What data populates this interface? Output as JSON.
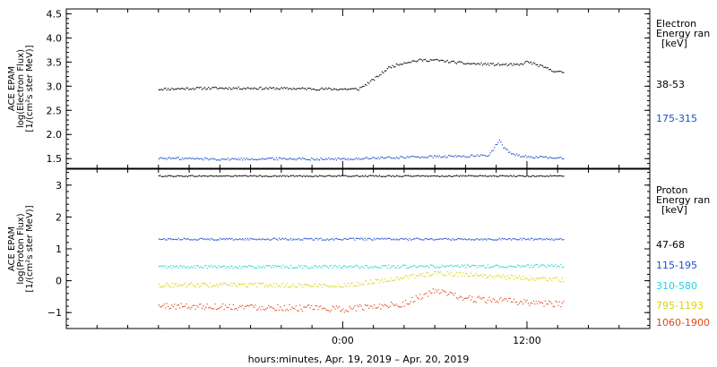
{
  "chart_data": [
    {
      "type": "scatter",
      "ylabel_lines": [
        "ACE EPAM",
        "log(Electron Flux)",
        "[1/(cm²s ster MeV)]"
      ],
      "ylim": [
        1.3,
        4.6
      ],
      "yticks": [
        1.5,
        2.0,
        2.5,
        3.0,
        3.5,
        4.0,
        4.5
      ],
      "ytick_labels": [
        "1.5",
        "2.0",
        "2.5",
        "3.0",
        "3.5",
        "4.0",
        "4.5"
      ],
      "legend_title_lines": [
        "Electron",
        "Energy ran",
        "[keV]"
      ],
      "series": [
        {
          "name": "38-53",
          "color": "#000000",
          "x": [
            -12,
            -9,
            -6,
            -3,
            -0.5,
            1,
            2,
            3,
            4,
            5,
            6,
            8,
            10,
            11.5,
            12,
            14
          ],
          "values": [
            2.95,
            2.97,
            2.97,
            2.96,
            2.95,
            2.95,
            3.15,
            3.4,
            3.5,
            3.55,
            3.55,
            3.48,
            3.46,
            3.45,
            3.52,
            3.3
          ]
        },
        {
          "name": "175-315",
          "color": "#1a4fd0",
          "x": [
            -12,
            -8,
            -4,
            0,
            4,
            8,
            9.5,
            10.2,
            10.4,
            11,
            12,
            14
          ],
          "values": [
            1.52,
            1.5,
            1.51,
            1.5,
            1.54,
            1.56,
            1.58,
            1.9,
            1.75,
            1.6,
            1.55,
            1.52
          ]
        }
      ]
    },
    {
      "type": "scatter",
      "ylabel_lines": [
        "ACE EPAM",
        "log(Proton Flux)",
        "[1/(cm²s ster MeV)]"
      ],
      "ylim": [
        -1.5,
        3.5
      ],
      "yticks": [
        -1,
        0,
        1,
        2,
        3
      ],
      "ytick_labels": [
        "−1",
        "0",
        "1",
        "2",
        "3"
      ],
      "legend_title_lines": [
        "Proton",
        "Energy ran",
        "[keV]"
      ],
      "series": [
        {
          "name": "47-68",
          "color": "#000000",
          "x": [
            -12,
            -6,
            0,
            6,
            14
          ],
          "values": [
            3.3,
            3.3,
            3.3,
            3.3,
            3.3
          ]
        },
        {
          "name": "115-195",
          "color": "#1a4fd0",
          "x": [
            -12,
            -6,
            0,
            6,
            14
          ],
          "values": [
            1.32,
            1.32,
            1.32,
            1.32,
            1.32
          ]
        },
        {
          "name": "310-580",
          "color": "#22d4d4",
          "x": [
            -12,
            -6,
            0,
            6,
            14
          ],
          "values": [
            0.45,
            0.45,
            0.45,
            0.46,
            0.48
          ]
        },
        {
          "name": "795-1193",
          "color": "#d6d600",
          "x": [
            -12,
            -6,
            0,
            6,
            14
          ],
          "values": [
            -0.12,
            -0.12,
            -0.14,
            0.25,
            0.05
          ]
        },
        {
          "name": "1060-1900",
          "color": "#e0471a",
          "x": [
            -12,
            -6,
            0,
            4,
            6,
            8,
            14
          ],
          "values": [
            -0.78,
            -0.8,
            -0.88,
            -0.7,
            -0.3,
            -0.55,
            -0.72
          ]
        }
      ]
    }
  ],
  "x_axis": {
    "range_hours": [
      -18,
      20
    ],
    "data_range_hours": [
      -12,
      14.4
    ],
    "ticks": [
      0,
      12
    ],
    "tick_labels": [
      "0:00",
      "12:00"
    ],
    "label": "hours:minutes, Apr. 19, 2019 – Apr. 20, 2019"
  }
}
